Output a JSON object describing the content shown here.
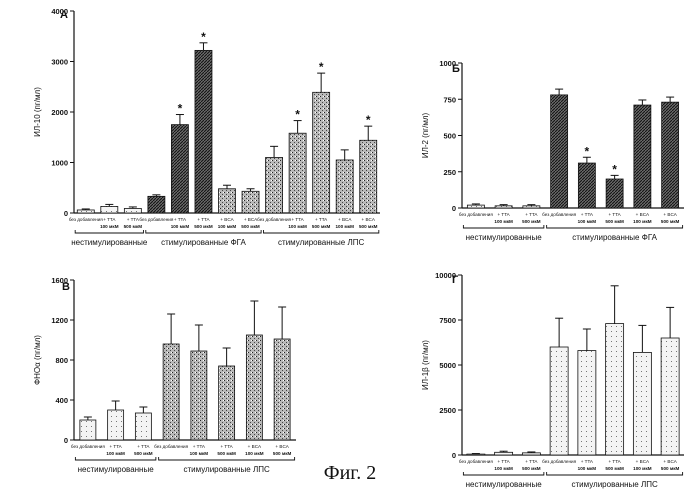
{
  "caption": "Фиг. 2",
  "colors": {
    "ink": "#111111",
    "bar_light": "#f2f2f2",
    "bar_mid": "#9a9a9a",
    "bar_dark": "#3a3a3a"
  },
  "chart_data": [
    {
      "type": "bar",
      "panel": "А",
      "ylabel": "ИЛ-10 (пг/мл)",
      "ylim": [
        0,
        4000
      ],
      "yticks": [
        0,
        1000,
        2000,
        3000,
        4000
      ],
      "ytick_labels": [
        "0",
        "1000",
        "2000",
        "3000",
        "4000"
      ],
      "categories": [
        [
          "без добавления"
        ],
        [
          "+ TTA",
          "100 мкМ"
        ],
        [
          "+ TTA",
          "500 мкМ"
        ],
        [
          "без добавления"
        ],
        [
          "+ TTA",
          "100 мкМ"
        ],
        [
          "+ TTA",
          "500 мкМ"
        ],
        [
          "+ BCA",
          "100 мкМ"
        ],
        [
          "+ BCA",
          "500 мкМ"
        ],
        [
          "без добавления"
        ],
        [
          "+ TTA",
          "100 мкМ"
        ],
        [
          "+ TTA",
          "500 мкМ"
        ],
        [
          "+ BCA",
          "100 мкМ"
        ],
        [
          "+ BCA",
          "500 мкМ"
        ]
      ],
      "values": [
        60,
        130,
        90,
        330,
        1750,
        3220,
        480,
        430,
        1100,
        1580,
        2390,
        1050,
        1440
      ],
      "errors": [
        20,
        40,
        30,
        30,
        200,
        150,
        70,
        50,
        220,
        250,
        380,
        200,
        280
      ],
      "fill": [
        "light",
        "light",
        "light",
        "dark",
        "dark",
        "dark",
        "mid",
        "mid",
        "mid",
        "mid",
        "mid",
        "mid",
        "mid"
      ],
      "significance": [
        "",
        "",
        "",
        "",
        "*",
        "*",
        "",
        "",
        "",
        "*",
        "*",
        "",
        "*"
      ],
      "groups": [
        {
          "label": "нестимулированные",
          "from": 0,
          "to": 2
        },
        {
          "label": "стимулированные ФГА",
          "from": 3,
          "to": 7
        },
        {
          "label": "стимулированные ЛПС",
          "from": 8,
          "to": 12
        }
      ]
    },
    {
      "type": "bar",
      "panel": "Б",
      "ylabel": "ИЛ-2 (пг/мл)",
      "ylim": [
        0,
        1000
      ],
      "yticks": [
        0,
        250,
        500,
        750,
        1000
      ],
      "ytick_labels": [
        "0",
        "250",
        "500",
        "750",
        "1000"
      ],
      "categories": [
        [
          "без добавления"
        ],
        [
          "+ TTA",
          "100 мкМ"
        ],
        [
          "+ TTA",
          "500 мкМ"
        ],
        [
          "без добавления"
        ],
        [
          "+ TTA",
          "100 мкМ"
        ],
        [
          "+ TTA",
          "500 мкМ"
        ],
        [
          "+ BCA",
          "100 мкМ"
        ],
        [
          "+ BCA",
          "500 мкМ"
        ]
      ],
      "values": [
        20,
        15,
        15,
        780,
        310,
        200,
        710,
        730
      ],
      "errors": [
        8,
        8,
        8,
        40,
        40,
        25,
        35,
        35
      ],
      "fill": [
        "light",
        "light",
        "light",
        "dark",
        "dark",
        "dark",
        "dark",
        "dark"
      ],
      "significance": [
        "",
        "",
        "",
        "",
        "*",
        "*",
        "",
        ""
      ],
      "groups": [
        {
          "label": "нестимулированные",
          "from": 0,
          "to": 2
        },
        {
          "label": "стимулированные ФГА",
          "from": 3,
          "to": 7
        }
      ]
    },
    {
      "type": "bar",
      "panel": "В",
      "ylabel": "ФНОα (пг/мл)",
      "ylim": [
        0,
        1600
      ],
      "yticks": [
        0,
        400,
        800,
        1200,
        1600
      ],
      "ytick_labels": [
        "0",
        "400",
        "800",
        "1200",
        "1600"
      ],
      "categories": [
        [
          "без добавления"
        ],
        [
          "+ TTA",
          "100 мкМ"
        ],
        [
          "+ TTA",
          "500 мкМ"
        ],
        [
          "без добавления"
        ],
        [
          "+ TTA",
          "100 мкМ"
        ],
        [
          "+ TTA",
          "500 мкМ"
        ],
        [
          "+ BCA",
          "100 мкМ"
        ],
        [
          "+ BCA",
          "500 мкМ"
        ]
      ],
      "values": [
        200,
        300,
        270,
        960,
        890,
        740,
        1050,
        1010
      ],
      "errors": [
        30,
        90,
        60,
        300,
        260,
        180,
        340,
        320
      ],
      "fill": [
        "light",
        "light",
        "light",
        "mid",
        "mid",
        "mid",
        "mid",
        "mid"
      ],
      "significance": [
        "",
        "",
        "",
        "",
        "",
        "",
        "",
        ""
      ],
      "groups": [
        {
          "label": "нестимулированные",
          "from": 0,
          "to": 2
        },
        {
          "label": "стимулированные ЛПС",
          "from": 3,
          "to": 7
        }
      ]
    },
    {
      "type": "bar",
      "panel": "Г",
      "ylabel": "ИЛ-1β (пг/мл)",
      "ylim": [
        0,
        10000
      ],
      "yticks": [
        0,
        2500,
        5000,
        7500,
        10000
      ],
      "ytick_labels": [
        "0",
        "2500",
        "5000",
        "7500",
        "10000"
      ],
      "categories": [
        [
          "без добавления"
        ],
        [
          "+ TTA",
          "100 мкМ"
        ],
        [
          "+ TTA",
          "500 мкМ"
        ],
        [
          "без добавления"
        ],
        [
          "+ TTA",
          "100 мкМ"
        ],
        [
          "+ TTA",
          "500 мкМ"
        ],
        [
          "+ BCA",
          "100 мкМ"
        ],
        [
          "+ BCA",
          "500 мкМ"
        ]
      ],
      "values": [
        50,
        150,
        120,
        6000,
        5800,
        7300,
        5700,
        6500
      ],
      "errors": [
        30,
        60,
        50,
        1600,
        1200,
        2100,
        1500,
        1700
      ],
      "fill": [
        "light",
        "light",
        "light",
        "light",
        "light",
        "light",
        "light",
        "light"
      ],
      "significance": [
        "",
        "",
        "",
        "",
        "",
        "",
        "",
        ""
      ],
      "groups": [
        {
          "label": "нестимулированные",
          "from": 0,
          "to": 2
        },
        {
          "label": "стимулированные ЛПС",
          "from": 3,
          "to": 7
        }
      ]
    }
  ]
}
